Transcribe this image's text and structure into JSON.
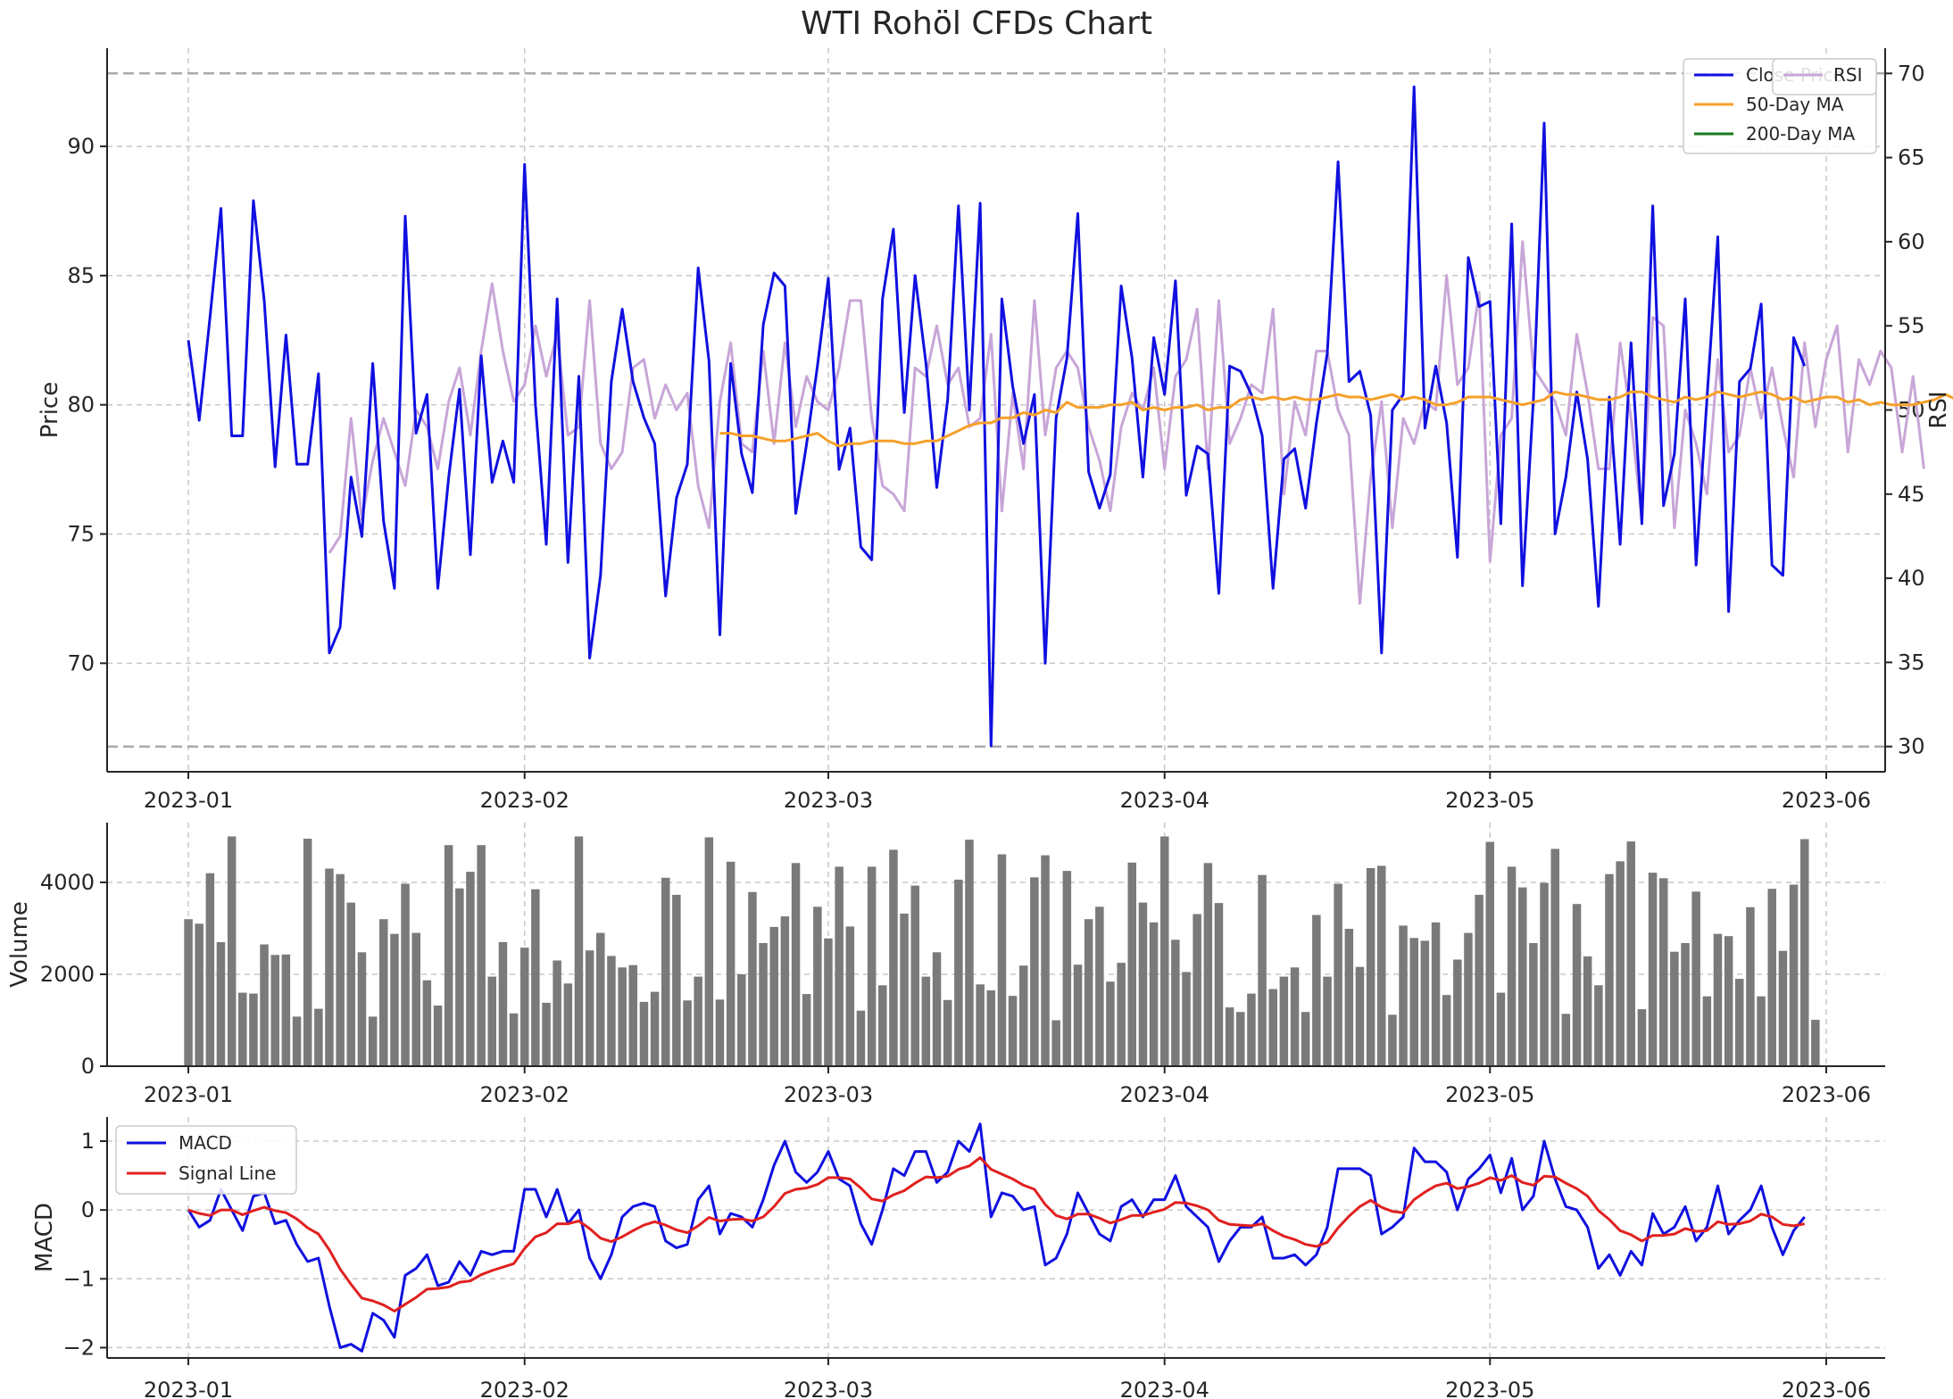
{
  "title": "WTI Rohöl CFDs Chart",
  "colors": {
    "close": "#1010e0",
    "ma50": "#f5a02a",
    "ma200": "#1a7a1a",
    "rsi": "#c8a6d8",
    "volume": "#7a7a7a",
    "macd": "#1010e0",
    "signal": "#e02020",
    "grid": "#c8c8c8",
    "ref": "#aaaaaa"
  },
  "chart_data": [
    {
      "panel": "price",
      "type": "line",
      "ylabel": "Price",
      "ylabel_right": "RSI",
      "xticks": [
        "2023-01",
        "2023-02",
        "2023-03",
        "2023-04",
        "2023-05",
        "2023-06"
      ],
      "xtick_days": [
        0,
        31,
        59,
        90,
        120,
        151
      ],
      "yticks": [
        70,
        75,
        80,
        85,
        90
      ],
      "ylim": [
        65.8,
        93.8
      ],
      "yticks_right": [
        30,
        35,
        40,
        45,
        50,
        55,
        60,
        65,
        70
      ],
      "ylim_right": [
        28.5,
        71.5
      ],
      "rsi_reference_lines": [
        30,
        70
      ],
      "legend_position": "upper right",
      "series": [
        {
          "name": "Close Price",
          "start_day": 0,
          "values": [
            82.5,
            79.4,
            83.4,
            87.6,
            78.8,
            78.8,
            87.9,
            84.0,
            77.6,
            82.7,
            77.7,
            77.7,
            81.2,
            70.4,
            71.4,
            77.2,
            74.9,
            81.6,
            75.5,
            72.9,
            87.3,
            78.9,
            80.4,
            72.9,
            77.2,
            80.6,
            74.2,
            81.9,
            77.0,
            78.6,
            77.0,
            89.3,
            80.0,
            74.6,
            84.1,
            73.9,
            81.1,
            70.2,
            73.4,
            80.9,
            83.7,
            80.9,
            79.5,
            78.5,
            72.6,
            76.4,
            77.7,
            85.3,
            81.7,
            71.1,
            81.6,
            78.1,
            76.6,
            83.1,
            85.1,
            84.6,
            75.8,
            78.5,
            81.5,
            84.9,
            77.5,
            79.1,
            74.5,
            74.0,
            84.1,
            86.8,
            79.7,
            85.0,
            81.6,
            76.8,
            80.2,
            87.7,
            79.8,
            87.8,
            66.8,
            84.1,
            80.7,
            78.5,
            80.4,
            70.0,
            79.5,
            81.8,
            87.4,
            77.4,
            76.0,
            77.3,
            84.6,
            81.8,
            77.2,
            82.6,
            80.4,
            84.8,
            76.5,
            78.4,
            78.1,
            72.7,
            81.5,
            81.3,
            80.4,
            78.8,
            72.9,
            77.9,
            78.3,
            76.0,
            79.3,
            82.0,
            89.4,
            80.9,
            81.3,
            79.6,
            70.4,
            79.8,
            80.4,
            92.3,
            79.1,
            81.5,
            79.3,
            74.1,
            85.7,
            83.8,
            84.0,
            75.4,
            87.0,
            73.0,
            80.2,
            90.9,
            75.0,
            77.2,
            80.5,
            77.9,
            72.2,
            80.3,
            74.6,
            82.4,
            75.4,
            87.7,
            76.1,
            78.1,
            84.1,
            73.8,
            80.2,
            86.5,
            72.0,
            80.9,
            81.4,
            83.9,
            73.8,
            73.4,
            82.6,
            81.5
          ]
        },
        {
          "name": "50-Day MA",
          "start_day": 49,
          "values": [
            78.9,
            78.9,
            78.8,
            78.8,
            78.7,
            78.6,
            78.6,
            78.7,
            78.8,
            78.9,
            78.6,
            78.4,
            78.5,
            78.5,
            78.6,
            78.6,
            78.6,
            78.5,
            78.5,
            78.6,
            78.6,
            78.8,
            79.0,
            79.2,
            79.3,
            79.3,
            79.5,
            79.5,
            79.7,
            79.6,
            79.8,
            79.7,
            80.1,
            79.9,
            79.9,
            79.9,
            80.0,
            80.0,
            80.1,
            79.8,
            79.9,
            79.8,
            79.9,
            79.9,
            80.0,
            79.8,
            79.9,
            79.9,
            80.2,
            80.3,
            80.2,
            80.3,
            80.2,
            80.3,
            80.2,
            80.2,
            80.3,
            80.4,
            80.3,
            80.3,
            80.2,
            80.3,
            80.4,
            80.2,
            80.3,
            80.2,
            80.0,
            80.0,
            80.1,
            80.3,
            80.3,
            80.3,
            80.2,
            80.1,
            80.0,
            80.1,
            80.2,
            80.5,
            80.4,
            80.4,
            80.3,
            80.2,
            80.2,
            80.3,
            80.5,
            80.5,
            80.3,
            80.2,
            80.1,
            80.3,
            80.2,
            80.3,
            80.5,
            80.4,
            80.3,
            80.4,
            80.5,
            80.4,
            80.2,
            80.3,
            80.1,
            80.2,
            80.3,
            80.3,
            80.1,
            80.2,
            80.0,
            80.1,
            80.0,
            80.0,
            80.0,
            80.1,
            80.2,
            80.4,
            80.2,
            80.0,
            79.9,
            80.0
          ]
        },
        {
          "name": "200-Day MA",
          "values": []
        },
        {
          "name": "RSI",
          "axis": "right",
          "start_day": 13,
          "values": [
            41.5,
            42.5,
            49.5,
            43.5,
            47.0,
            49.5,
            47.5,
            45.5,
            50.0,
            49.0,
            46.5,
            50.5,
            52.5,
            48.5,
            53.5,
            57.5,
            53.5,
            50.5,
            51.5,
            55.0,
            52.0,
            54.5,
            48.5,
            49.0,
            56.5,
            48.0,
            46.5,
            47.5,
            52.5,
            53.0,
            49.5,
            51.5,
            50.0,
            51.0,
            45.5,
            43.0,
            50.5,
            54.0,
            48.0,
            47.5,
            53.5,
            48.0,
            54.0,
            49.0,
            52.0,
            50.5,
            50.0,
            52.5,
            56.5,
            56.5,
            49.5,
            45.5,
            45.0,
            44.0,
            52.5,
            52.0,
            55.0,
            51.5,
            52.5,
            49.0,
            49.5,
            54.5,
            44.0,
            51.0,
            46.5,
            56.5,
            48.5,
            52.5,
            53.5,
            52.5,
            49.0,
            47.0,
            44.0,
            49.0,
            51.0,
            50.0,
            52.5,
            46.5,
            52.0,
            53.0,
            56.0,
            46.5,
            56.5,
            48.0,
            49.5,
            51.5,
            51.0,
            56.0,
            45.0,
            50.5,
            48.5,
            53.5,
            53.5,
            50.0,
            48.5,
            38.5,
            46.0,
            50.5,
            43.0,
            49.5,
            48.0,
            50.5,
            50.0,
            58.0,
            51.5,
            52.5,
            57.0,
            41.0,
            48.5,
            49.5,
            60.0,
            52.5,
            51.5,
            50.5,
            48.5,
            54.5,
            51.0,
            46.5,
            46.5,
            54.0,
            49.5,
            43.5,
            55.5,
            55.0,
            43.0,
            50.0,
            48.0,
            45.0,
            53.0,
            47.5,
            48.5,
            52.5,
            49.5,
            52.5,
            49.0,
            46.0,
            54.0,
            49.0,
            53.0,
            55.0,
            47.5,
            53.0,
            51.5,
            53.5,
            52.5,
            47.5,
            52.0,
            46.5
          ]
        }
      ]
    },
    {
      "panel": "volume",
      "type": "bar",
      "ylabel": "Volume",
      "xticks": [
        "2023-01",
        "2023-02",
        "2023-03",
        "2023-04",
        "2023-05",
        "2023-06"
      ],
      "yticks": [
        0,
        2000,
        4000
      ],
      "ylim": [
        0,
        5300
      ],
      "start_day": 0,
      "values": [
        3200,
        3100,
        4200,
        2700,
        5000,
        1600,
        1580,
        2650,
        2420,
        2430,
        1080,
        4950,
        1250,
        4300,
        4180,
        3560,
        2480,
        1080,
        3200,
        2880,
        3970,
        2900,
        1870,
        1320,
        4810,
        3870,
        4230,
        4810,
        1950,
        2700,
        1150,
        2580,
        3850,
        1380,
        2300,
        1800,
        5000,
        2520,
        2900,
        2400,
        2150,
        2200,
        1400,
        1620,
        4100,
        3730,
        1430,
        1950,
        4980,
        1450,
        4450,
        2000,
        3790,
        2680,
        3030,
        3260,
        4420,
        1570,
        3470,
        2780,
        4340,
        3040,
        1210,
        4340,
        1760,
        4710,
        3320,
        3930,
        1950,
        2480,
        1440,
        4060,
        4930,
        1780,
        1650,
        4610,
        1530,
        2190,
        4110,
        4590,
        1000,
        4250,
        2210,
        3200,
        3470,
        1840,
        2250,
        4430,
        3560,
        3130,
        5000,
        2750,
        2050,
        3310,
        4420,
        3550,
        1280,
        1180,
        1580,
        4160,
        1680,
        1950,
        2150,
        1180,
        3290,
        1950,
        3970,
        2990,
        2160,
        4310,
        4360,
        1120,
        3060,
        2790,
        2730,
        3130,
        1550,
        2320,
        2900,
        3730,
        4880,
        1600,
        4340,
        3890,
        2680,
        3990,
        4730,
        1140,
        3530,
        2390,
        1760,
        4180,
        4460,
        4890,
        1240,
        4210,
        4090,
        2490,
        2680,
        3800,
        1520,
        2880,
        2830,
        1900,
        3460,
        1520,
        3860,
        2510,
        3950,
        4940,
        1010
      ]
    },
    {
      "panel": "macd",
      "type": "line",
      "ylabel": "MACD",
      "xticks": [
        "2023-01",
        "2023-02",
        "2023-03",
        "2023-04",
        "2023-05",
        "2023-06"
      ],
      "yticks": [
        -2,
        -1,
        0,
        1
      ],
      "ylim": [
        -2.15,
        1.35
      ],
      "legend_position": "upper left",
      "series": [
        {
          "name": "MACD",
          "start_day": 0,
          "values": [
            0.0,
            -0.25,
            -0.15,
            0.3,
            0.0,
            -0.3,
            0.2,
            0.25,
            -0.2,
            -0.15,
            -0.5,
            -0.75,
            -0.7,
            -1.4,
            -2.0,
            -1.95,
            -2.05,
            -1.5,
            -1.6,
            -1.85,
            -0.95,
            -0.85,
            -0.65,
            -1.1,
            -1.05,
            -0.75,
            -0.95,
            -0.6,
            -0.65,
            -0.6,
            -0.6,
            0.3,
            0.3,
            -0.1,
            0.3,
            -0.2,
            0.0,
            -0.7,
            -1.0,
            -0.65,
            -0.1,
            0.05,
            0.1,
            0.05,
            -0.45,
            -0.55,
            -0.5,
            0.15,
            0.35,
            -0.35,
            -0.05,
            -0.1,
            -0.25,
            0.15,
            0.65,
            1.0,
            0.55,
            0.4,
            0.55,
            0.85,
            0.45,
            0.35,
            -0.2,
            -0.5,
            0.0,
            0.6,
            0.5,
            0.85,
            0.85,
            0.4,
            0.55,
            1.0,
            0.85,
            1.25,
            -0.1,
            0.25,
            0.2,
            0.0,
            0.05,
            -0.8,
            -0.7,
            -0.35,
            0.25,
            -0.05,
            -0.35,
            -0.45,
            0.05,
            0.15,
            -0.1,
            0.15,
            0.15,
            0.5,
            0.05,
            -0.1,
            -0.25,
            -0.75,
            -0.45,
            -0.25,
            -0.25,
            -0.1,
            -0.7,
            -0.7,
            -0.65,
            -0.8,
            -0.65,
            -0.25,
            0.6,
            0.6,
            0.6,
            0.5,
            -0.35,
            -0.25,
            -0.1,
            0.9,
            0.7,
            0.7,
            0.55,
            0.0,
            0.45,
            0.6,
            0.8,
            0.25,
            0.75,
            0.0,
            0.2,
            1.0,
            0.45,
            0.05,
            0.0,
            -0.25,
            -0.85,
            -0.65,
            -0.95,
            -0.6,
            -0.8,
            -0.05,
            -0.35,
            -0.25,
            0.05,
            -0.45,
            -0.25,
            0.35,
            -0.35,
            -0.15,
            0.0,
            0.35,
            -0.25,
            -0.65,
            -0.3,
            -0.1
          ]
        },
        {
          "name": "Signal Line",
          "start_day": 0,
          "values": [
            0.0,
            -0.05,
            -0.08,
            0.0,
            0.0,
            -0.07,
            -0.01,
            0.04,
            -0.01,
            -0.04,
            -0.13,
            -0.26,
            -0.35,
            -0.58,
            -0.86,
            -1.08,
            -1.28,
            -1.32,
            -1.38,
            -1.47,
            -1.37,
            -1.27,
            -1.15,
            -1.14,
            -1.12,
            -1.05,
            -1.03,
            -0.94,
            -0.88,
            -0.83,
            -0.78,
            -0.56,
            -0.39,
            -0.33,
            -0.2,
            -0.2,
            -0.16,
            -0.27,
            -0.41,
            -0.46,
            -0.39,
            -0.3,
            -0.22,
            -0.17,
            -0.22,
            -0.29,
            -0.33,
            -0.23,
            -0.11,
            -0.16,
            -0.14,
            -0.13,
            -0.16,
            -0.1,
            0.05,
            0.24,
            0.3,
            0.32,
            0.37,
            0.47,
            0.47,
            0.45,
            0.32,
            0.16,
            0.13,
            0.22,
            0.28,
            0.39,
            0.48,
            0.47,
            0.49,
            0.59,
            0.64,
            0.76,
            0.59,
            0.52,
            0.45,
            0.36,
            0.3,
            0.08,
            -0.08,
            -0.13,
            -0.06,
            -0.06,
            -0.12,
            -0.19,
            -0.14,
            -0.08,
            -0.08,
            -0.03,
            0.01,
            0.11,
            0.1,
            0.06,
            -0.0,
            -0.15,
            -0.21,
            -0.22,
            -0.23,
            -0.2,
            -0.3,
            -0.38,
            -0.43,
            -0.5,
            -0.53,
            -0.47,
            -0.26,
            -0.09,
            0.05,
            0.14,
            0.04,
            -0.02,
            -0.04,
            0.15,
            0.26,
            0.35,
            0.39,
            0.31,
            0.34,
            0.39,
            0.47,
            0.43,
            0.5,
            0.4,
            0.36,
            0.49,
            0.48,
            0.39,
            0.31,
            0.2,
            -0.01,
            -0.14,
            -0.3,
            -0.36,
            -0.45,
            -0.37,
            -0.37,
            -0.35,
            -0.27,
            -0.31,
            -0.3,
            -0.17,
            -0.21,
            -0.2,
            -0.16,
            -0.06,
            -0.1,
            -0.21,
            -0.23,
            -0.2
          ]
        }
      ]
    }
  ]
}
